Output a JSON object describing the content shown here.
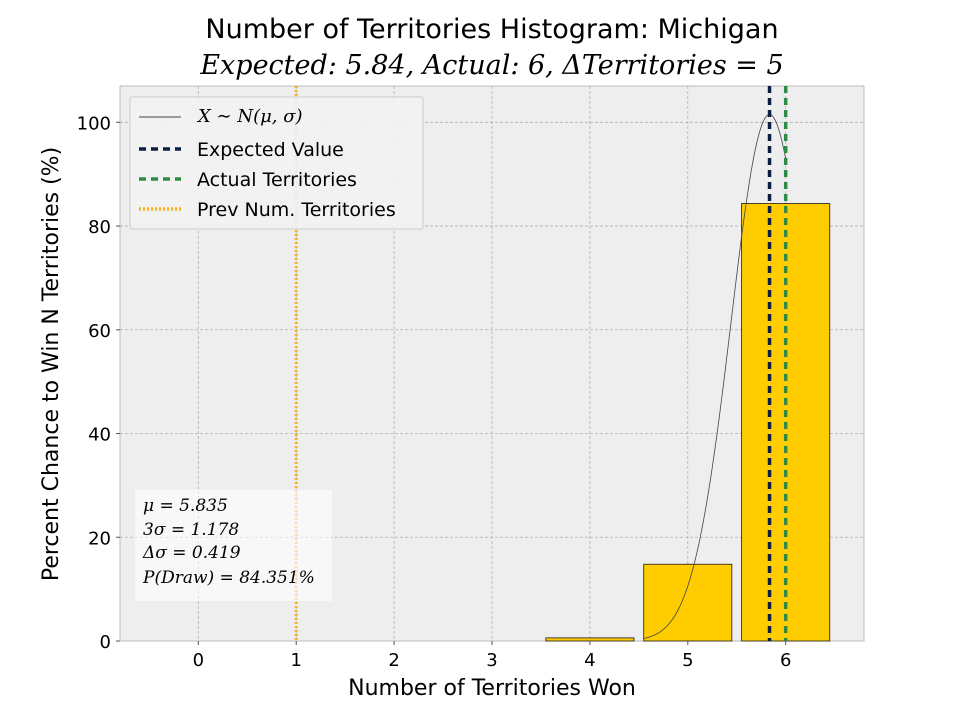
{
  "chart_data": {
    "type": "bar",
    "title": "Number of Territories Histogram: Michigan",
    "subtitle": "Expected: 5.84, Actual: 6, ΔTerritories = 5",
    "xlabel": "Number of Territories Won",
    "ylabel": "Percent Chance to Win N Territories (%)",
    "categories": [
      "0",
      "1",
      "2",
      "3",
      "4",
      "5",
      "6"
    ],
    "x": [
      0,
      1,
      2,
      3,
      4,
      5,
      6
    ],
    "values": [
      0,
      0,
      0,
      0,
      0.6,
      14.8,
      84.351
    ],
    "xlim": [
      -0.8,
      6.8
    ],
    "ylim": [
      0,
      107
    ],
    "y_ticks": [
      0,
      20,
      40,
      60,
      80,
      100
    ],
    "grid": true,
    "legend_placement": "top-left",
    "legend": [
      {
        "label": "X ∼ N(μ, σ)",
        "style": "thin-line",
        "color": "#444444"
      },
      {
        "label": "Expected Value",
        "style": "dashed",
        "color": "#0b1f44"
      },
      {
        "label": "Actual Territories",
        "style": "dashed",
        "color": "#2e8b45"
      },
      {
        "label": "Prev Num. Territories",
        "style": "dotted",
        "color": "#ffb21a"
      }
    ],
    "normal_curve": {
      "mu": 5.835,
      "sigma": 0.3927,
      "peak": 101.5
    },
    "expected_value": 5.835,
    "actual_territories": 6,
    "prev_territories": 1,
    "stats_box": [
      "μ = 5.835",
      "3σ = 1.178",
      "Δσ = 0.419",
      "P(Draw) = 84.351%"
    ],
    "colors": {
      "bar": "#ffcc00",
      "bar_edge": "#1a1a1a",
      "axes_bg": "#eeeeee",
      "grid": "#b0b0b0",
      "curve": "#444444",
      "expected": "#0b1f44",
      "actual": "#2e8b45",
      "prev": "#ffb21a"
    }
  }
}
